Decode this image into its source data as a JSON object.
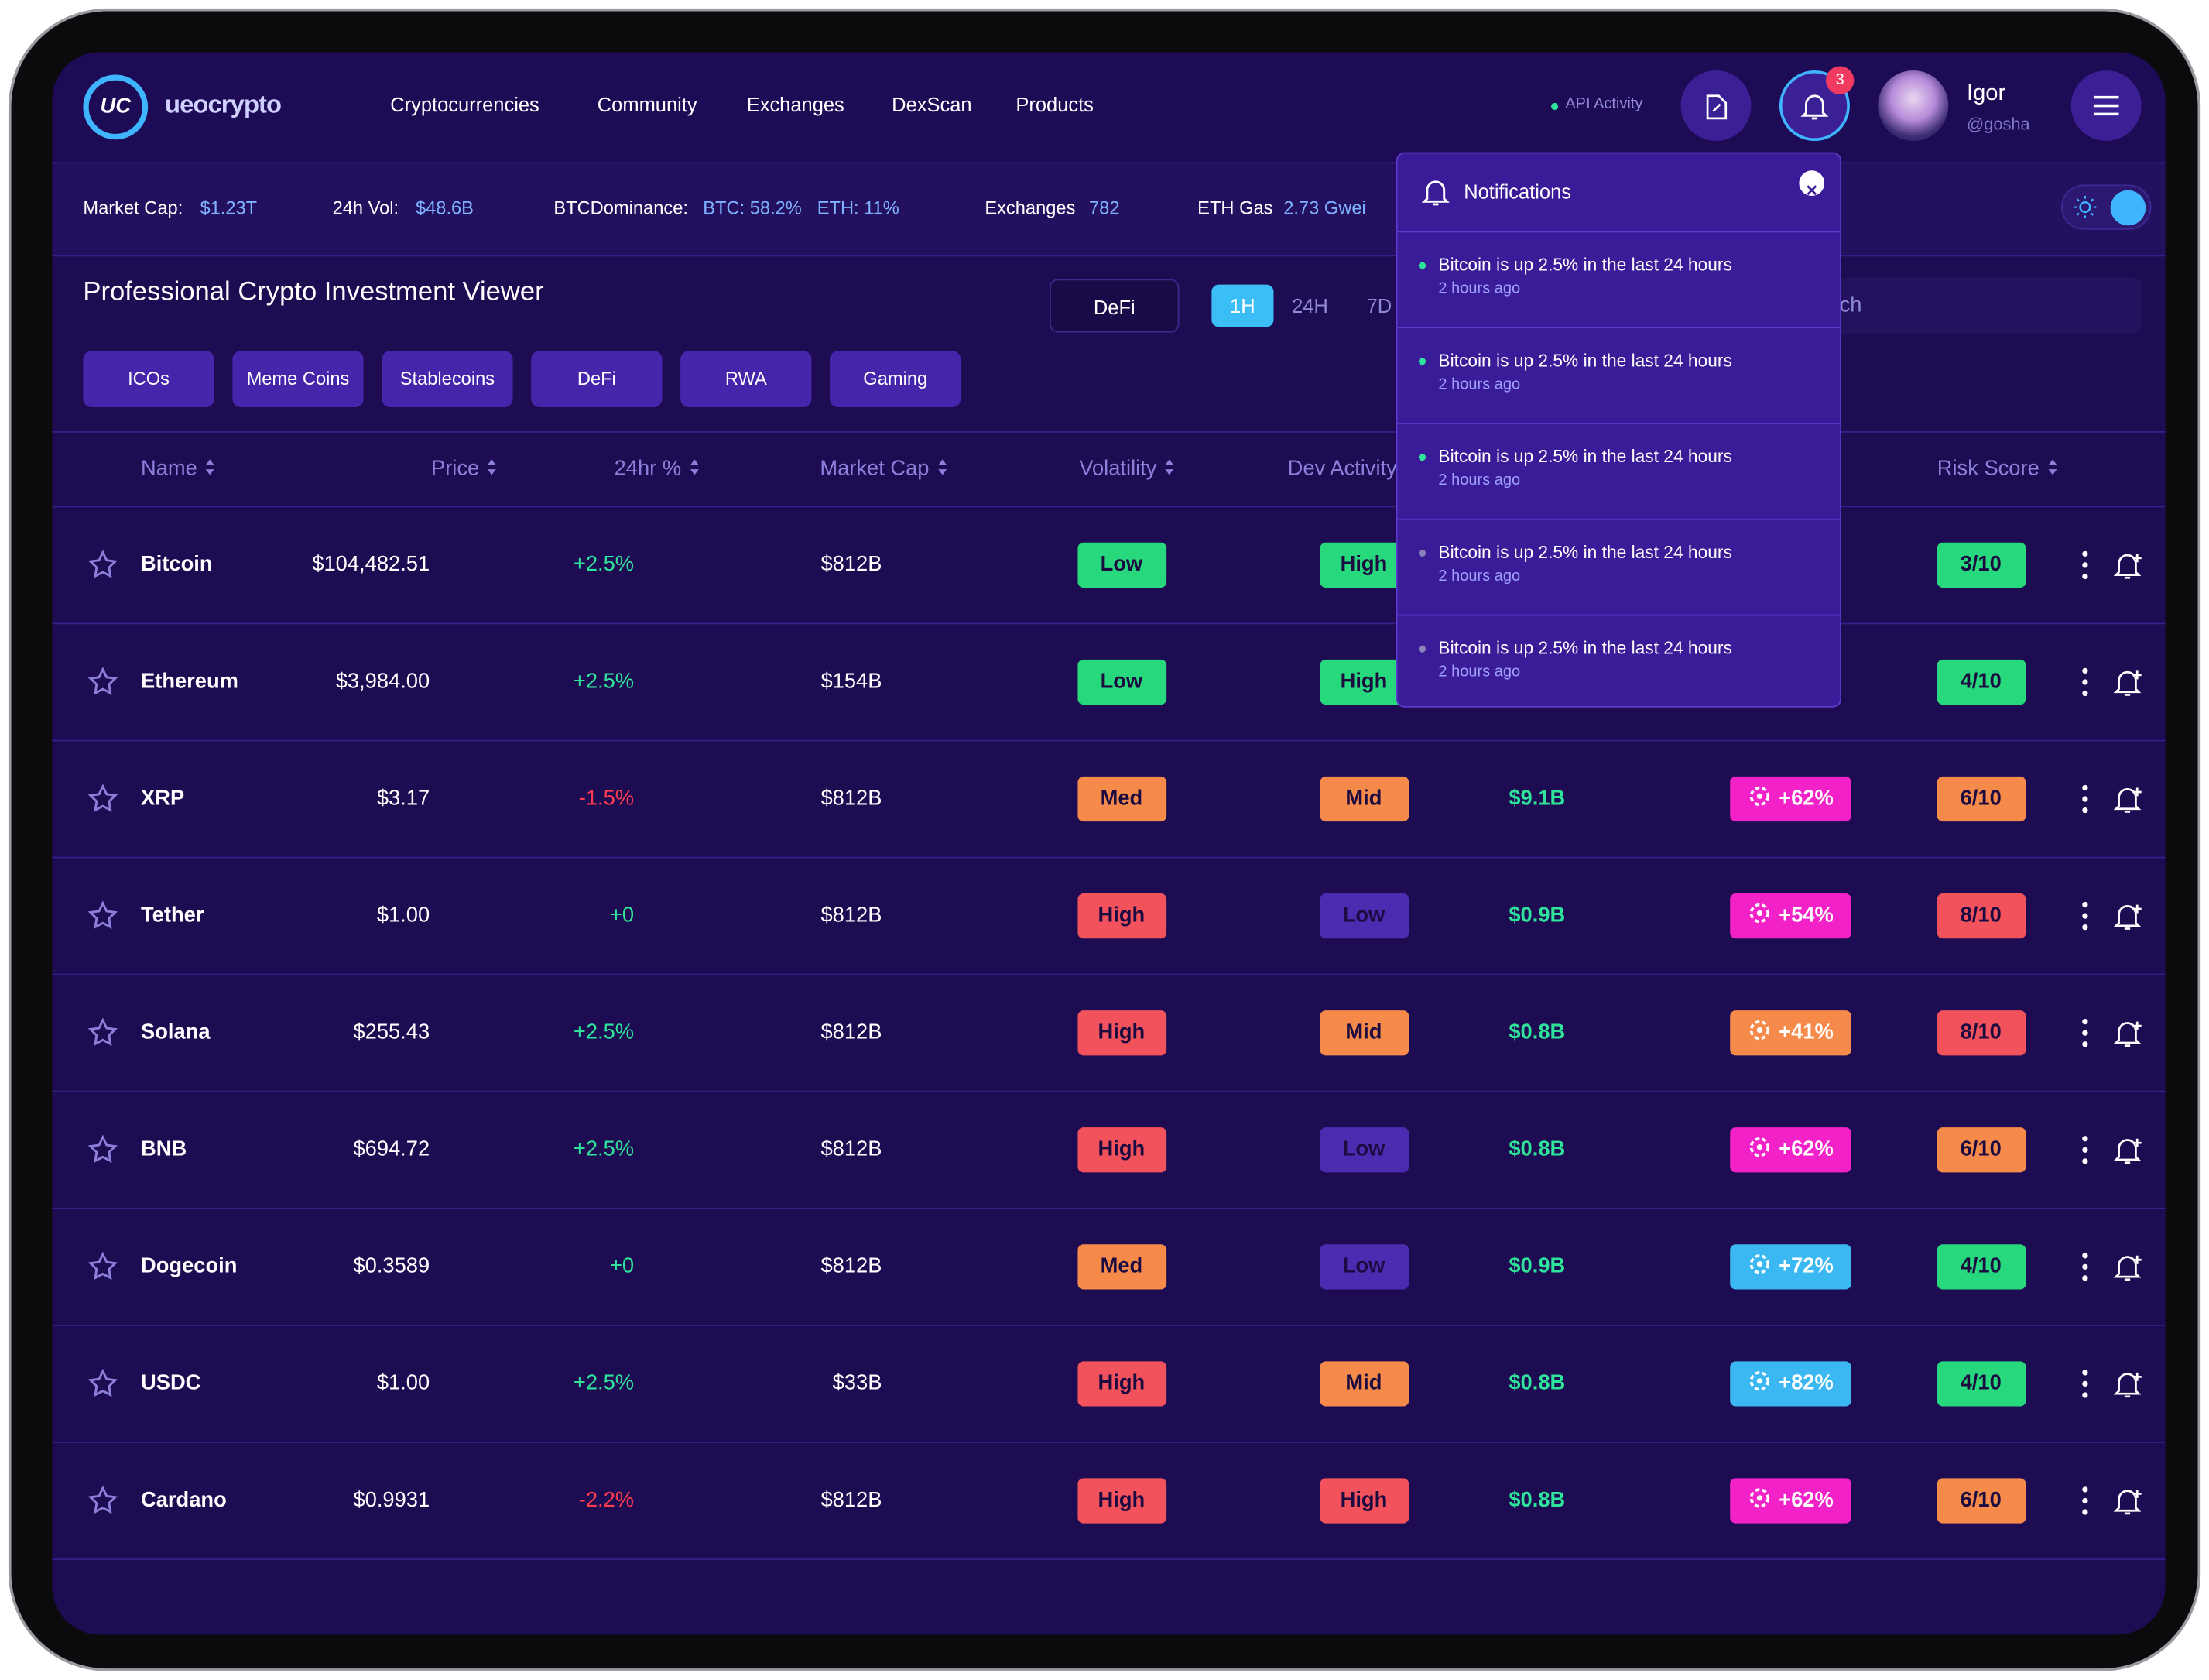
{
  "header": {
    "logo_mark": "UC",
    "logo_text": "ueocrypto",
    "nav": [
      "Cryptocurrencies",
      "Community",
      "Exchanges",
      "DexScan",
      "Products"
    ],
    "api_activity": "API Activity",
    "notification_count": "3",
    "user_name": "Igor",
    "user_handle": "@gosha"
  },
  "stats": [
    {
      "label": "Market Cap:",
      "values": [
        "$1.23T"
      ]
    },
    {
      "label": "24h Vol:",
      "values": [
        "$48.6B"
      ]
    },
    {
      "label": "BTCDominance:",
      "values": [
        "BTC: 58.2%",
        "ETH: 11%"
      ]
    },
    {
      "label": "Exchanges",
      "values": [
        "782"
      ]
    },
    {
      "label": "ETH Gas",
      "values": [
        "2.73 Gwei"
      ]
    }
  ],
  "title": "Professional Crypto Investment Viewer",
  "filters": [
    "ICOs",
    "Meme Coins",
    "Stablecoins",
    "DeFi",
    "RWA",
    "Gaming"
  ],
  "dropdown": "DeFi",
  "time_tabs": [
    "1H",
    "24H",
    "7D"
  ],
  "search_placeholder": "Search",
  "table": {
    "columns": [
      "Name",
      "Price",
      "24hr %",
      "Market Cap",
      "Volatility",
      "Dev Activity",
      "Risk Score"
    ],
    "rows": [
      {
        "name": "Bitcoin",
        "price": "$104,482.51",
        "change": "+2.5%",
        "change_color": "#2fe39a",
        "market_cap": "$812B",
        "volatility": {
          "label": "Low",
          "color": "#27d97c"
        },
        "dev": {
          "label": "High",
          "color": "#27d97c"
        },
        "volume": null,
        "sentiment": null,
        "risk": {
          "label": "3/10",
          "color": "#27d97c"
        }
      },
      {
        "name": "Ethereum",
        "price": "$3,984.00",
        "change": "+2.5%",
        "change_color": "#2fe39a",
        "market_cap": "$154B",
        "volatility": {
          "label": "Low",
          "color": "#27d97c"
        },
        "dev": {
          "label": "High",
          "color": "#27d97c"
        },
        "volume": null,
        "sentiment": null,
        "risk": {
          "label": "4/10",
          "color": "#27d97c"
        }
      },
      {
        "name": "XRP",
        "price": "$3.17",
        "change": "-1.5%",
        "change_color": "#ff3b4f",
        "market_cap": "$812B",
        "volatility": {
          "label": "Med",
          "color": "#f58a4b"
        },
        "dev": {
          "label": "Mid",
          "color": "#f58a4b"
        },
        "volume": "$9.1B",
        "sentiment": {
          "label": "+62%",
          "color": "#f221c8"
        },
        "risk": {
          "label": "6/10",
          "color": "#f58a4b"
        }
      },
      {
        "name": "Tether",
        "price": "$1.00",
        "change": "+0",
        "change_color": "#2fe39a",
        "market_cap": "$812B",
        "volatility": {
          "label": "High",
          "color": "#f2525b"
        },
        "dev": {
          "label": "Low",
          "color": "#4b2bb0"
        },
        "volume": "$0.9B",
        "sentiment": {
          "label": "+54%",
          "color": "#f221c8"
        },
        "risk": {
          "label": "8/10",
          "color": "#f2525b"
        }
      },
      {
        "name": "Solana",
        "price": "$255.43",
        "change": "+2.5%",
        "change_color": "#2fe39a",
        "market_cap": "$812B",
        "volatility": {
          "label": "High",
          "color": "#f2525b"
        },
        "dev": {
          "label": "Mid",
          "color": "#f58a4b"
        },
        "volume": "$0.8B",
        "sentiment": {
          "label": "+41%",
          "color": "#f58a4b"
        },
        "risk": {
          "label": "8/10",
          "color": "#f2525b"
        }
      },
      {
        "name": "BNB",
        "price": "$694.72",
        "change": "+2.5%",
        "change_color": "#2fe39a",
        "market_cap": "$812B",
        "volatility": {
          "label": "High",
          "color": "#f2525b"
        },
        "dev": {
          "label": "Low",
          "color": "#4b2bb0"
        },
        "volume": "$0.8B",
        "sentiment": {
          "label": "+62%",
          "color": "#f221c8"
        },
        "risk": {
          "label": "6/10",
          "color": "#f58a4b"
        }
      },
      {
        "name": "Dogecoin",
        "price": "$0.3589",
        "change": "+0",
        "change_color": "#2fe39a",
        "market_cap": "$812B",
        "volatility": {
          "label": "Med",
          "color": "#f58a4b"
        },
        "dev": {
          "label": "Low",
          "color": "#4b2bb0"
        },
        "volume": "$0.9B",
        "sentiment": {
          "label": "+72%",
          "color": "#3bb8f2"
        },
        "risk": {
          "label": "4/10",
          "color": "#27d97c"
        }
      },
      {
        "name": "USDC",
        "price": "$1.00",
        "change": "+2.5%",
        "change_color": "#2fe39a",
        "market_cap": "$33B",
        "volatility": {
          "label": "High",
          "color": "#f2525b"
        },
        "dev": {
          "label": "Mid",
          "color": "#f58a4b"
        },
        "volume": "$0.8B",
        "sentiment": {
          "label": "+82%",
          "color": "#3bb8f2"
        },
        "risk": {
          "label": "4/10",
          "color": "#27d97c"
        }
      },
      {
        "name": "Cardano",
        "price": "$0.9931",
        "change": "-2.2%",
        "change_color": "#ff3b4f",
        "market_cap": "$812B",
        "volatility": {
          "label": "High",
          "color": "#f2525b"
        },
        "dev": {
          "label": "High",
          "color": "#f2525b"
        },
        "volume": "$0.8B",
        "sentiment": {
          "label": "+62%",
          "color": "#f221c8"
        },
        "risk": {
          "label": "6/10",
          "color": "#f58a4b"
        }
      }
    ]
  },
  "notifications": {
    "title": "Notifications",
    "items": [
      {
        "text": "Bitcoin is up 2.5% in the last 24 hours",
        "time": "2 hours ago",
        "dot": "#2fe39a"
      },
      {
        "text": "Bitcoin is up 2.5% in the last 24 hours",
        "time": "2 hours ago",
        "dot": "#2fe39a"
      },
      {
        "text": "Bitcoin is up 2.5% in the last 24 hours",
        "time": "2 hours ago",
        "dot": "#2fe39a"
      },
      {
        "text": "Bitcoin is up 2.5% in the last 24 hours",
        "time": "2 hours ago",
        "dot": "#8a84b8"
      },
      {
        "text": "Bitcoin is up 2.5% in the last 24 hours",
        "time": "2 hours ago",
        "dot": "#8a84b8"
      }
    ]
  }
}
